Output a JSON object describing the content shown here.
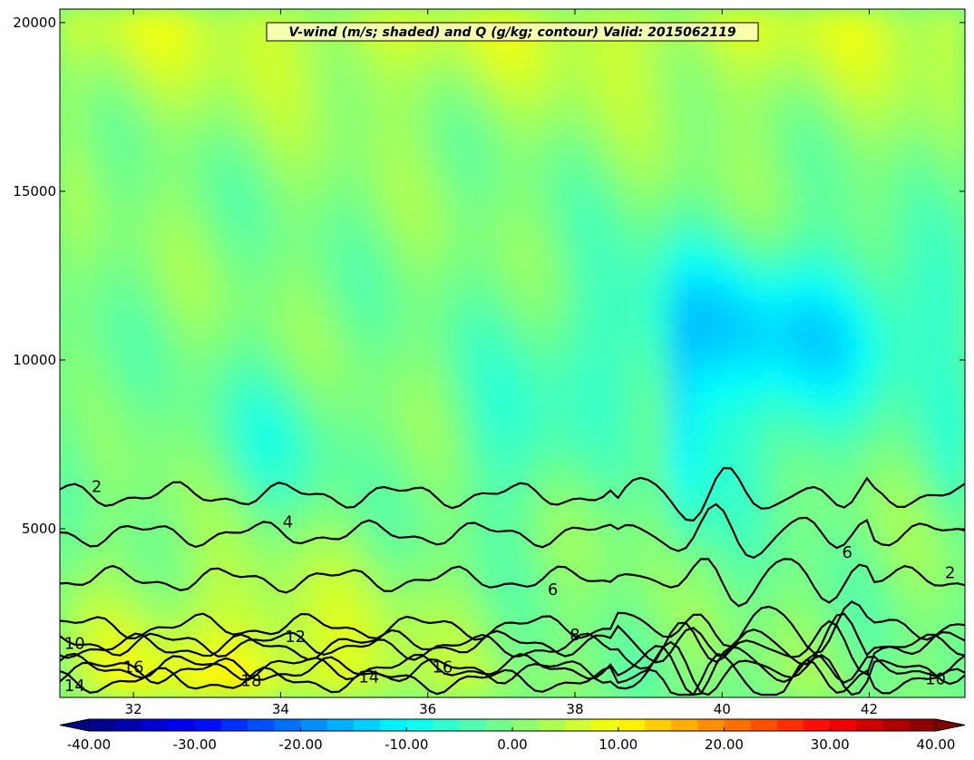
{
  "chart_data": {
    "type": "heatmap",
    "title": "V-wind (m/s; shaded) and Q (g/kg; contour) Valid: 2015062119",
    "xlabel": "",
    "ylabel": "",
    "xlim": [
      31.0,
      43.3
    ],
    "ylim": [
      0,
      20400
    ],
    "x_ticks": [
      32,
      34,
      36,
      38,
      40,
      42
    ],
    "y_ticks": [
      5000,
      10000,
      15000,
      20000
    ],
    "colorbar": {
      "range": [
        -40,
        40
      ],
      "ticks": [
        -40,
        -30,
        -20,
        -10,
        0,
        10,
        20,
        30,
        40
      ],
      "tick_labels": [
        "-40.00",
        "-30.00",
        "-20.00",
        "-10.00",
        "0.00",
        "10.00",
        "20.00",
        "30.00",
        "40.00"
      ],
      "colormap": "jet",
      "extend": "both"
    },
    "field_values": {
      "background_v_wind": 0,
      "negative_region": {
        "x_range": [
          38.2,
          43.3
        ],
        "y_range": [
          8500,
          13500
        ],
        "v_wind": -12
      },
      "negative_jet": {
        "x": 39.5,
        "y_range": [
          4500,
          12000
        ],
        "v_wind": -16
      },
      "positive_low_levels": {
        "x_range": [
          31,
          36
        ],
        "y_range": [
          0,
          3500
        ],
        "v_wind": 10
      },
      "positive_upper": {
        "y_range": [
          17000,
          20400
        ],
        "v_wind": 6
      }
    },
    "contours": [
      {
        "level": 2,
        "y": 6000
      },
      {
        "level": 4,
        "y": 4850
      },
      {
        "level": 6,
        "y": 3500
      },
      {
        "level": 8,
        "y": 2100
      },
      {
        "level": 10,
        "y": 1600
      },
      {
        "level": 12,
        "y": 1500
      },
      {
        "level": 14,
        "y": 800
      },
      {
        "level": 16,
        "y": 900
      },
      {
        "level": 18,
        "y": 500
      }
    ],
    "contour_labels": [
      {
        "text": "2",
        "x": 31.5,
        "y": 6250
      },
      {
        "text": "4",
        "x": 34.1,
        "y": 5200
      },
      {
        "text": "6",
        "x": 37.7,
        "y": 3200
      },
      {
        "text": "8",
        "x": 38.0,
        "y": 1850
      },
      {
        "text": "10",
        "x": 31.2,
        "y": 1600
      },
      {
        "text": "12",
        "x": 34.2,
        "y": 1800
      },
      {
        "text": "16",
        "x": 32.0,
        "y": 900
      },
      {
        "text": "18",
        "x": 33.6,
        "y": 500
      },
      {
        "text": "14",
        "x": 35.2,
        "y": 600
      },
      {
        "text": "16",
        "x": 36.2,
        "y": 900
      },
      {
        "text": "14",
        "x": 31.2,
        "y": 350
      },
      {
        "text": "6",
        "x": 41.7,
        "y": 4300
      },
      {
        "text": "2",
        "x": 43.1,
        "y": 3700
      },
      {
        "text": "10",
        "x": 42.9,
        "y": 550
      }
    ]
  }
}
